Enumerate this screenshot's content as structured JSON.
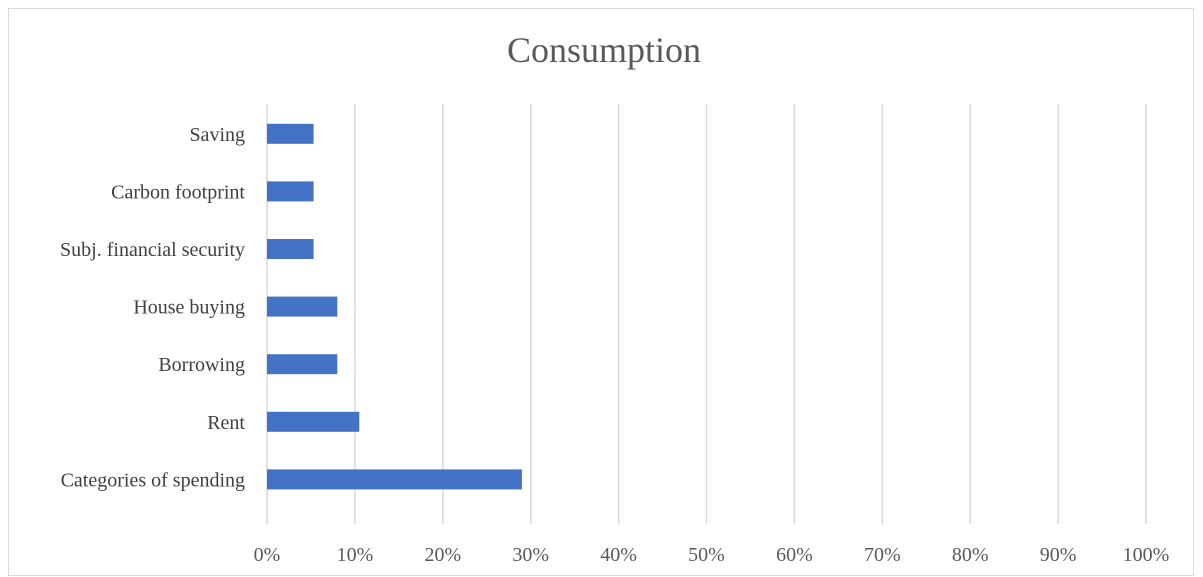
{
  "chart_data": {
    "type": "bar",
    "orientation": "horizontal",
    "title": "Consumption",
    "xlabel": "",
    "ylabel": "",
    "categories": [
      "Categories of spending",
      "Rent",
      "Borrowing",
      "House buying",
      "Subj. financial security",
      "Carbon footprint",
      "Saving"
    ],
    "series": [
      {
        "values": [
          0.29,
          0.105,
          0.08,
          0.08,
          0.053,
          0.053,
          0.053
        ]
      }
    ],
    "xlim": [
      0,
      1
    ],
    "xticks": [
      "0%",
      "10%",
      "20%",
      "30%",
      "40%",
      "50%",
      "60%",
      "70%",
      "80%",
      "90%",
      "100%"
    ],
    "grid": "vertical",
    "bar_color": "#4472c4",
    "legend": "none"
  }
}
